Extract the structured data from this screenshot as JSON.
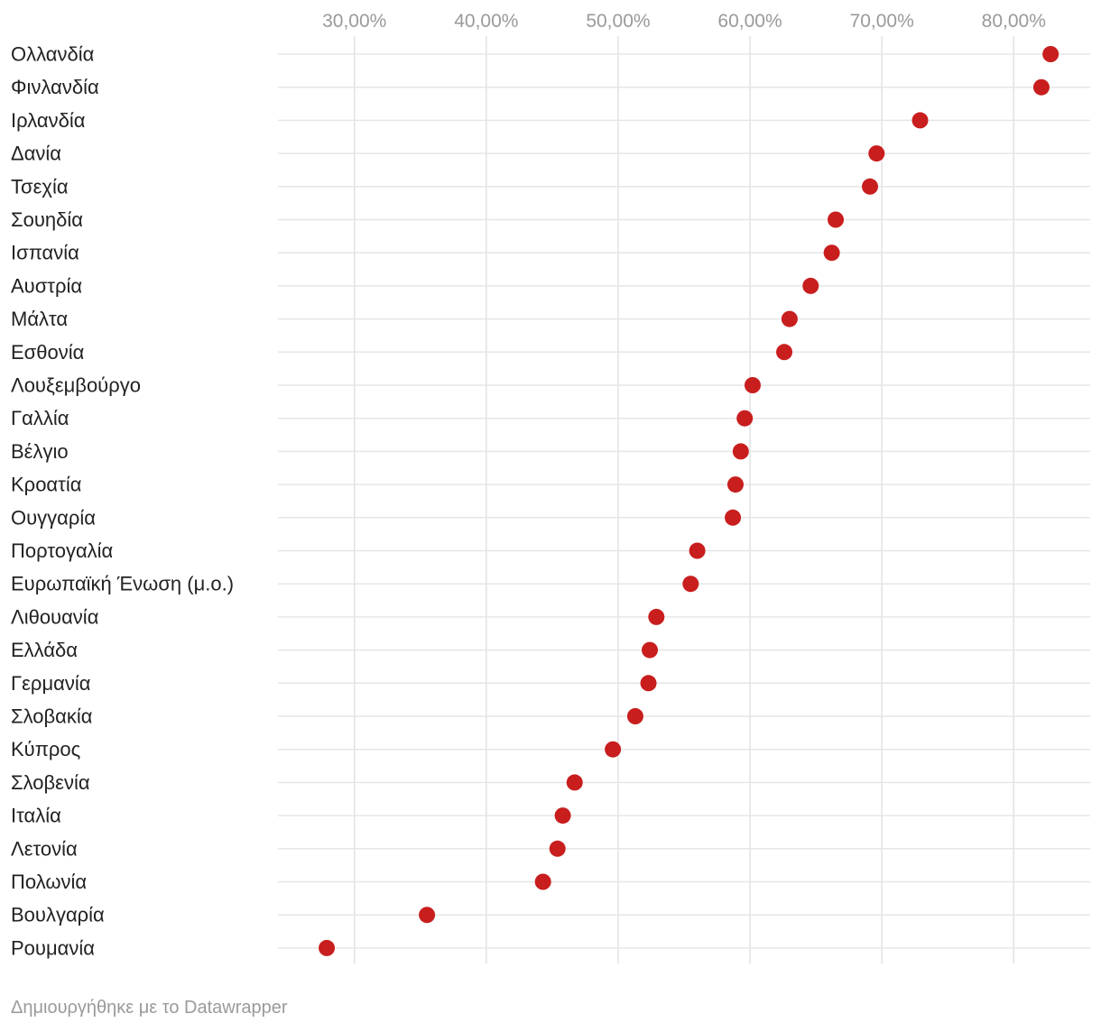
{
  "chart_data": {
    "type": "scatter",
    "orientation": "horizontal-dot-plot",
    "title": "",
    "xlabel": "",
    "ylabel": "",
    "xlim": [
      24.2,
      85.8
    ],
    "x_ticks": [
      30,
      40,
      50,
      60,
      70,
      80
    ],
    "x_tick_labels": [
      "30,00%",
      "40,00%",
      "50,00%",
      "60,00%",
      "70,00%",
      "80,00%"
    ],
    "grid": true,
    "legend": "none",
    "dot_color": "#c81e1e",
    "categories": [
      "Ολλανδία",
      "Φινλανδία",
      "Ιρλανδία",
      "Δανία",
      "Τσεχία",
      "Σουηδία",
      "Ισπανία",
      "Αυστρία",
      "Μάλτα",
      "Εσθονία",
      "Λουξεμβούργο",
      "Γαλλία",
      "Βέλγιο",
      "Κροατία",
      "Ουγγαρία",
      "Πορτογαλία",
      "Ευρωπαϊκή Ένωση (μ.ο.)",
      "Λιθουανία",
      "Ελλάδα",
      "Γερμανία",
      "Σλοβακία",
      "Κύπρος",
      "Σλοβενία",
      "Ιταλία",
      "Λετονία",
      "Πολωνία",
      "Βουλγαρία",
      "Ρουμανία"
    ],
    "values": [
      82.8,
      82.1,
      72.9,
      69.6,
      69.1,
      66.5,
      66.2,
      64.6,
      63.0,
      62.6,
      60.2,
      59.6,
      59.3,
      58.9,
      58.7,
      56.0,
      55.5,
      52.9,
      52.4,
      52.3,
      51.3,
      49.6,
      46.7,
      45.8,
      45.4,
      44.3,
      35.5,
      27.9
    ]
  },
  "footer": {
    "credit": "Δημιουργήθηκε με το Datawrapper"
  }
}
